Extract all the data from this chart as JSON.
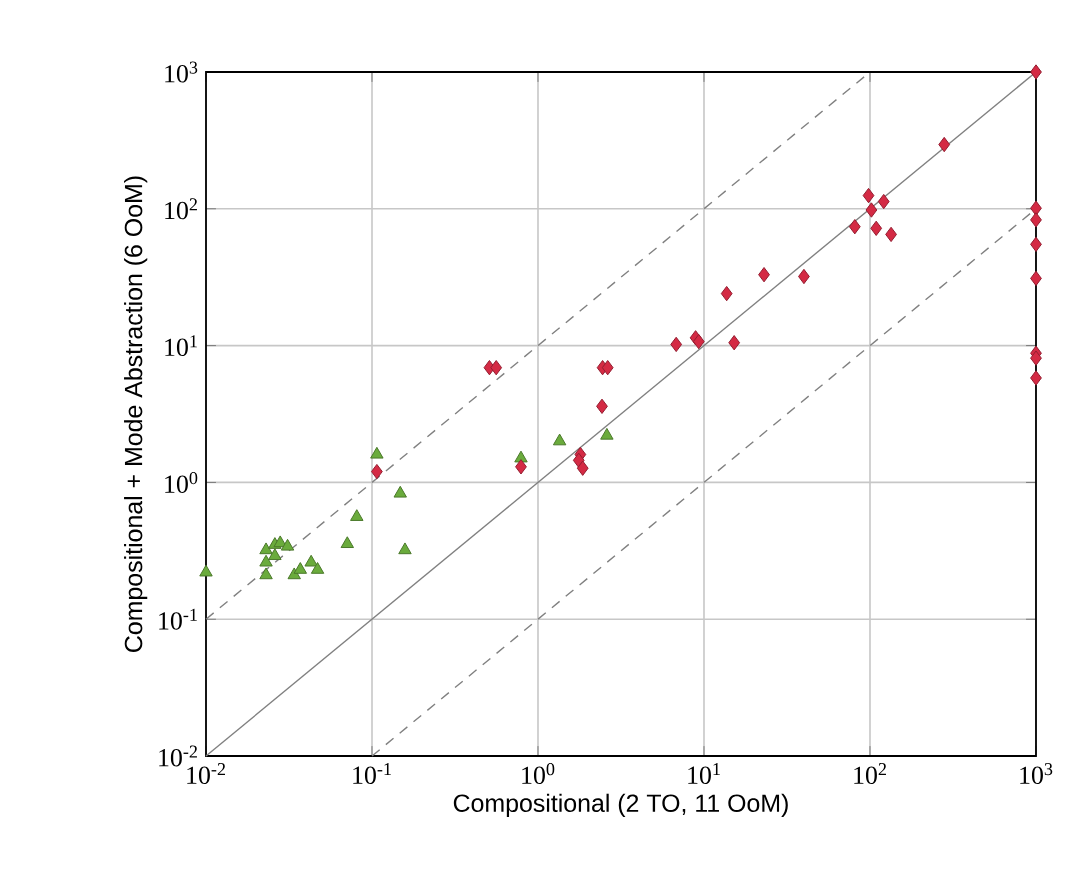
{
  "chart_data": {
    "type": "scatter",
    "xlabel": "Compositional (2 TO, 11 OoM)",
    "ylabel": "Compositional + Mode Abstraction (6 OoM)",
    "log": "xy",
    "grid": true,
    "xlim": [
      0.01,
      1000
    ],
    "ylim": [
      0.01,
      1000
    ],
    "xticks": [
      {
        "value": 0.01,
        "label": "10$^{-2}$"
      },
      {
        "value": 0.1,
        "label": "10$^{-1}$"
      },
      {
        "value": 1,
        "label": "10$^{0}$"
      },
      {
        "value": 10,
        "label": "10$^{1}$"
      },
      {
        "value": 100,
        "label": "10$^{2}$"
      },
      {
        "value": 1000,
        "label": "10$^{3}$"
      }
    ],
    "yticks": [
      {
        "value": 0.01,
        "label": "10$^{-2}$"
      },
      {
        "value": 0.1,
        "label": "10$^{-1}$"
      },
      {
        "value": 1,
        "label": "10$^{0}$"
      },
      {
        "value": 10,
        "label": "10$^{1}$"
      },
      {
        "value": 100,
        "label": "10$^{2}$"
      },
      {
        "value": 1000,
        "label": "10$^{3}$"
      }
    ],
    "series": [
      {
        "type": "line",
        "color": "#808080",
        "line_style": "solid",
        "marker": "none",
        "x": [
          0.01,
          1000
        ],
        "values": [
          0.01,
          1000
        ]
      },
      {
        "type": "line",
        "color": "#808080",
        "line_style": "dashed",
        "marker": "none",
        "x": [
          0.01,
          100
        ],
        "values": [
          0.1,
          1000
        ]
      },
      {
        "type": "line",
        "color": "#808080",
        "line_style": "dashed",
        "marker": "none",
        "x": [
          0.1,
          1000
        ],
        "values": [
          0.01,
          100
        ]
      },
      {
        "color": "#6aab3c",
        "marker": "triangle",
        "x": [
          0.01,
          0.107,
          0.148,
          0.081,
          0.071,
          0.158,
          0.023,
          0.026,
          0.028,
          0.031,
          0.026,
          0.023,
          0.023,
          0.043,
          0.034,
          0.037,
          0.047,
          0.79,
          1.35,
          2.6
        ],
        "values": [
          0.22,
          1.6,
          0.83,
          0.56,
          0.355,
          0.32,
          0.32,
          0.35,
          0.36,
          0.34,
          0.29,
          0.26,
          0.21,
          0.26,
          0.21,
          0.23,
          0.23,
          1.5,
          2.0,
          2.2
        ]
      },
      {
        "color": "#d42a44",
        "marker": "diamond",
        "x": [
          0.107,
          0.79,
          1.8,
          1.76,
          1.86,
          2.43,
          2.45,
          2.63,
          0.51,
          0.56,
          6.8,
          8.9,
          9.3,
          15.2,
          13.7,
          23,
          40,
          81,
          98,
          102,
          121,
          109,
          134,
          280,
          1000,
          1000
        ],
        "values": [
          1.2,
          1.3,
          1.6,
          1.45,
          1.27,
          3.6,
          6.9,
          6.9,
          6.9,
          6.9,
          10.2,
          11.4,
          10.7,
          10.5,
          24,
          33,
          32,
          74,
          125,
          98,
          113,
          72,
          65,
          295,
          8.8,
          8.1
        ]
      },
      {
        "color": "#d42a44",
        "marker": "diamond",
        "x": [
          1000,
          1000,
          1000,
          1000,
          1000,
          1000
        ],
        "values": [
          1000,
          101,
          83,
          55,
          31,
          5.8
        ]
      }
    ]
  }
}
